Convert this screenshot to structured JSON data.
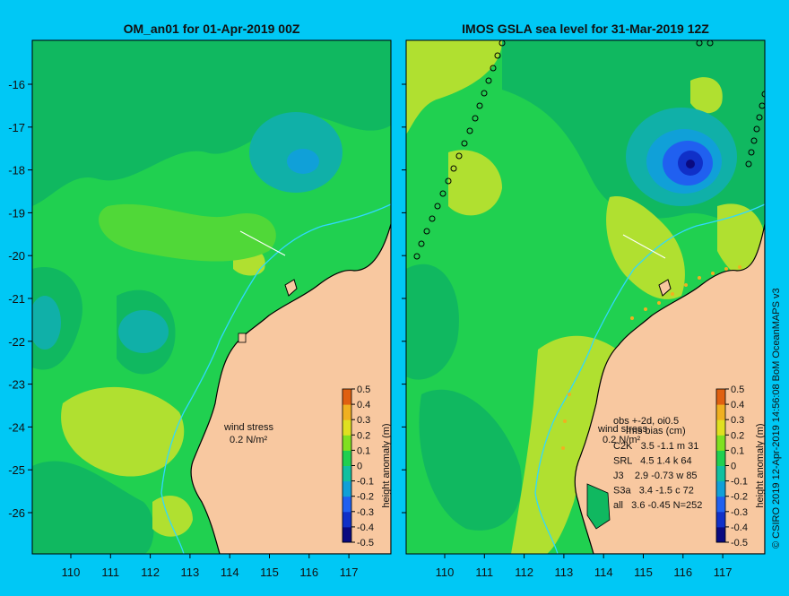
{
  "left_panel": {
    "title": "OM_an01 for 01-Apr-2019 00Z",
    "wind_label_1": "wind stress",
    "wind_label_2": "0.2 N/m²"
  },
  "right_panel": {
    "title": "IMOS GSLA sea level  for 31-Mar-2019 12Z",
    "wind_label_1": "wind stress",
    "wind_label_2": "0.2 N/m²",
    "stats_header_1": "obs +-2d, oi0.5",
    "stats_header_2": "rms  bias (cm)",
    "stats_rows": [
      "C2K   3.5 -1.1 m 31",
      "SRL   4.5 1.4 k 64",
      "J3    2.9 -0.73 w 85",
      "S3a   3.4 -1.5 c 72",
      "all   3.6 -0.45 N=252"
    ]
  },
  "colorbar": {
    "label": "height anomaly (m)",
    "ticks": [
      "0.5",
      "0.4",
      "0.3",
      "0.2",
      "0.1",
      "0",
      "-0.1",
      "-0.2",
      "-0.3",
      "-0.4",
      "-0.5"
    ],
    "colors": [
      "#0a0a80",
      "#1030c8",
      "#2060f0",
      "#10a0d8",
      "#10c0a0",
      "#20d050",
      "#80e020",
      "#e0e020",
      "#f0b020",
      "#e06010",
      "#b02010"
    ]
  },
  "axes": {
    "x_ticks": [
      "110",
      "111",
      "112",
      "113",
      "114",
      "115",
      "116",
      "117"
    ],
    "y_ticks": [
      "-16",
      "-17",
      "-18",
      "-19",
      "-20",
      "-21",
      "-22",
      "-23",
      "-24",
      "-25",
      "-26"
    ]
  },
  "credit": "© CSIRO 2019   12-Apr-2019 14:56:08 BoM OceanMAPS v3",
  "colors": {
    "background": "#00c8f5",
    "land": "#f8c8a0",
    "sea_base": "#20d050",
    "sea_mid": "#10b860",
    "sea_cyan": "#10b0a8",
    "sea_yellow": "#b0e030",
    "sea_blue": "#2060e0",
    "sea_deep": "#1030b0"
  }
}
